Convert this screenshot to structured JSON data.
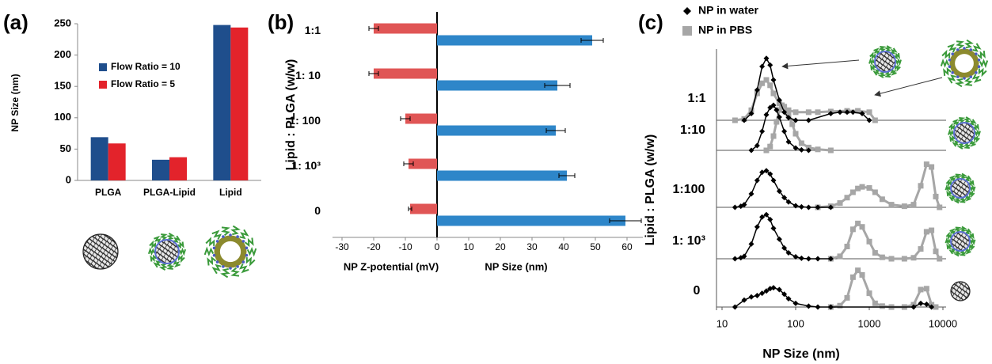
{
  "chart_data": [
    {
      "type": "bar",
      "panel_label": "(a)",
      "ylabel": "NP Size (nm)",
      "categories": [
        "PLGA",
        "PLGA-Lipid",
        "Lipid"
      ],
      "series": [
        {
          "name": "Flow Ratio = 10",
          "color": "#1f4e8c",
          "values": [
            69,
            33,
            248
          ]
        },
        {
          "name": "Flow Ratio = 5",
          "color": "#e3232b",
          "values": [
            59,
            37,
            244
          ]
        }
      ],
      "ylim": [
        0,
        250
      ],
      "yticks": [
        0,
        50,
        100,
        150,
        200,
        250
      ]
    },
    {
      "type": "barh",
      "panel_label": "(b)",
      "ylabel": "Lipid : PLGA (w/w)",
      "categories": [
        "1:1",
        "1: 10",
        "1: 100",
        "1: 10³",
        "0"
      ],
      "series": [
        {
          "name": "NP Z-potential  (mV)",
          "color": "#e05555",
          "values": [
            -20,
            -20,
            -10,
            -9,
            -8.5
          ],
          "errors": [
            1.5,
            1.5,
            1.5,
            1.5,
            0.5
          ]
        },
        {
          "name": "NP Size (nm)",
          "color": "#2e86c9",
          "values": [
            49,
            38,
            37.5,
            41,
            59.5
          ],
          "errors": [
            3.5,
            4,
            3,
            2.5,
            5
          ]
        }
      ],
      "xlim": [
        -33,
        65
      ],
      "xticks": [
        -30,
        -20,
        -10,
        0,
        10,
        20,
        30,
        40,
        50,
        60
      ]
    },
    {
      "type": "line",
      "panel_label": "(c)",
      "ylabel": "Lipid : PLGA (w/w)",
      "xlabel": "NP Size (nm)",
      "log_x": true,
      "xlim": [
        10,
        10000
      ],
      "xticks": [
        10,
        100,
        1000,
        10000
      ],
      "ylim": [
        0,
        100
      ],
      "row_labels": [
        "1:1",
        "1:10",
        "1:100",
        "1: 10³",
        "0"
      ],
      "series": [
        {
          "name": "NP in water",
          "color": "#000000",
          "marker": "diamond",
          "rows": [
            {
              "x": [
                20,
                25,
                30,
                35,
                40,
                45,
                50,
                60,
                70,
                80,
                100,
                150,
                300,
                400,
                500,
                600,
                800,
                1000
              ],
              "values": [
                0,
                10,
                45,
                80,
                92,
                82,
                60,
                30,
                12,
                4,
                0,
                0,
                10,
                12,
                12,
                12,
                10,
                0
              ]
            },
            {
              "x": [
                25,
                30,
                35,
                40,
                45,
                50,
                55,
                60,
                70,
                80,
                100,
                120,
                150
              ],
              "values": [
                0,
                10,
                40,
                75,
                90,
                95,
                85,
                70,
                40,
                18,
                5,
                1,
                0
              ]
            },
            {
              "x": [
                15,
                18,
                20,
                25,
                30,
                35,
                40,
                45,
                50,
                60,
                70,
                80,
                100,
                120,
                150,
                200,
                300
              ],
              "values": [
                0,
                2,
                5,
                25,
                50,
                65,
                68,
                62,
                50,
                30,
                18,
                10,
                3,
                1,
                0,
                0,
                0
              ]
            },
            {
              "x": [
                15,
                18,
                20,
                25,
                30,
                35,
                40,
                45,
                50,
                60,
                70,
                80,
                100,
                120,
                150,
                200,
                300
              ],
              "values": [
                0,
                2,
                5,
                30,
                65,
                85,
                90,
                80,
                62,
                40,
                22,
                12,
                4,
                1,
                0,
                0,
                0
              ]
            },
            {
              "x": [
                15,
                20,
                25,
                30,
                35,
                40,
                45,
                50,
                60,
                70,
                80,
                100,
                150,
                200,
                300,
                4000,
                5000,
                6000,
                7000
              ],
              "values": [
                0,
                15,
                22,
                25,
                30,
                35,
                40,
                42,
                38,
                28,
                18,
                8,
                2,
                0,
                0,
                0,
                8,
                6,
                0
              ]
            }
          ]
        },
        {
          "name": "NP in PBS",
          "color": "#a6a6a6",
          "marker": "square",
          "rows": [
            {
              "x": [
                15,
                20,
                25,
                30,
                35,
                40,
                45,
                50,
                60,
                80,
                100,
                150,
                200,
                300,
                500,
                700,
                1000,
                1200
              ],
              "values": [
                0,
                2,
                15,
                40,
                55,
                60,
                52,
                40,
                25,
                15,
                12,
                12,
                12,
                13,
                14,
                14,
                12,
                0
              ]
            },
            {
              "x": [
                40,
                45,
                50,
                55,
                60,
                65,
                70,
                80,
                90,
                100,
                120,
                150,
                200,
                300
              ],
              "values": [
                0,
                8,
                30,
                60,
                85,
                95,
                92,
                75,
                55,
                35,
                15,
                6,
                2,
                0
              ]
            },
            {
              "x": [
                200,
                300,
                400,
                500,
                600,
                700,
                800,
                1000,
                1200,
                1500,
                2000,
                3000,
                4000,
                5000,
                6000,
                7000,
                8000,
                9000
              ],
              "values": [
                0,
                2,
                8,
                18,
                28,
                35,
                38,
                36,
                28,
                15,
                5,
                2,
                5,
                40,
                80,
                75,
                20,
                0
              ]
            },
            {
              "x": [
                300,
                400,
                500,
                600,
                700,
                800,
                1000,
                1200,
                1500,
                2000,
                3000,
                4000,
                5000,
                6000,
                7000,
                8000,
                9000
              ],
              "values": [
                0,
                5,
                25,
                60,
                72,
                65,
                35,
                12,
                3,
                0,
                0,
                2,
                20,
                55,
                58,
                15,
                0
              ]
            },
            {
              "x": [
                300,
                400,
                500,
                600,
                700,
                800,
                1000,
                1200,
                1500,
                2000,
                3000,
                4000,
                5000,
                6000,
                7000,
                8000
              ],
              "values": [
                0,
                3,
                20,
                65,
                80,
                70,
                30,
                8,
                2,
                0,
                0,
                5,
                38,
                40,
                5,
                0
              ]
            }
          ]
        }
      ]
    }
  ]
}
